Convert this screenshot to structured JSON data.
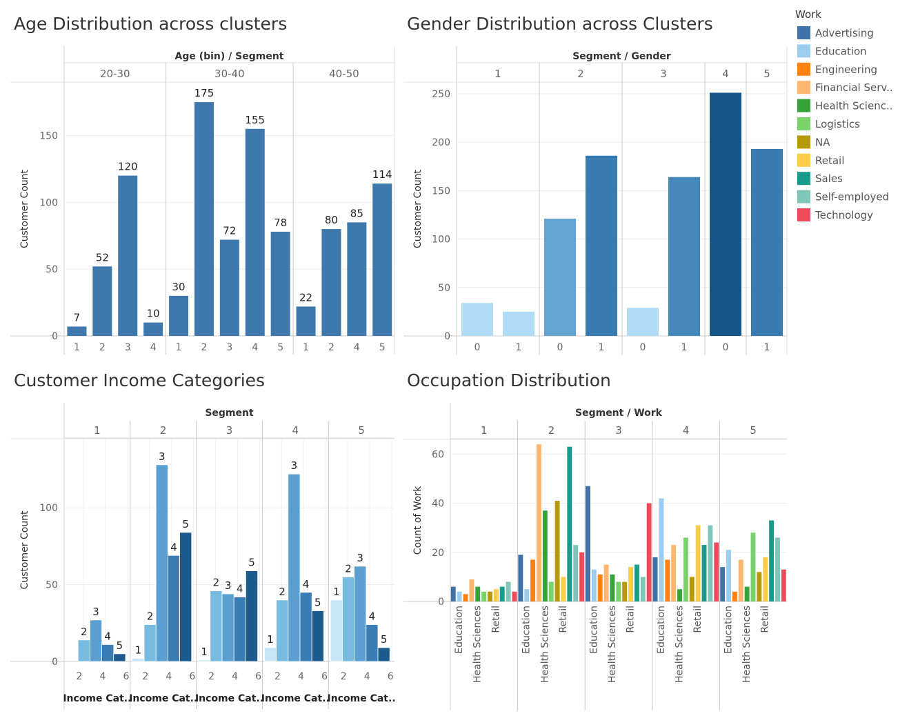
{
  "legend": {
    "title": "Work",
    "items": [
      {
        "label": "Advertising",
        "color": "#3f73a8"
      },
      {
        "label": "Education",
        "color": "#9ccdee"
      },
      {
        "label": "Engineering",
        "color": "#ff8213"
      },
      {
        "label": "Financial Serv..",
        "color": "#ffb770"
      },
      {
        "label": "Health Scienc..",
        "color": "#36a33a"
      },
      {
        "label": "Logistics",
        "color": "#79d26a"
      },
      {
        "label": "NA",
        "color": "#b69a0b"
      },
      {
        "label": "Retail",
        "color": "#f9cd49"
      },
      {
        "label": "Sales",
        "color": "#189b8a"
      },
      {
        "label": "Self-employed",
        "color": "#7fc6b8"
      },
      {
        "label": "Technology",
        "color": "#ef4c5b"
      }
    ]
  },
  "chart_data": [
    {
      "type": "bar",
      "title": "Age Distribution across clusters",
      "header": "Age (bin)  /  Segment",
      "ylabel": "Customer Count",
      "ylim": [
        0,
        190
      ],
      "yticks": [
        0,
        50,
        100,
        150
      ],
      "color": "#3f78ac",
      "groups": [
        {
          "label": "20-30",
          "categories": [
            "1",
            "2",
            "3",
            "4"
          ],
          "values": [
            7,
            52,
            120,
            10
          ]
        },
        {
          "label": "30-40",
          "categories": [
            "1",
            "2",
            "3",
            "4",
            "5"
          ],
          "values": [
            30,
            175,
            72,
            155,
            78
          ]
        },
        {
          "label": "40-50",
          "categories": [
            "1",
            "2",
            "4",
            "5"
          ],
          "values": [
            22,
            80,
            85,
            114
          ]
        }
      ]
    },
    {
      "type": "bar",
      "title": "Gender Distribution across Clusters",
      "header": "Segment  /  Gender",
      "ylabel": "Customer Count",
      "ylim": [
        0,
        262
      ],
      "yticks": [
        0,
        50,
        100,
        150,
        200,
        250
      ],
      "groups": [
        {
          "label": "1",
          "categories": [
            "0",
            "1"
          ],
          "values": [
            34,
            25
          ],
          "colors": [
            "#afdcf4",
            "#afdcf4"
          ]
        },
        {
          "label": "2",
          "categories": [
            "0",
            "1"
          ],
          "values": [
            121,
            186
          ],
          "colors": [
            "#62a5d1",
            "#387bb1"
          ]
        },
        {
          "label": "3",
          "categories": [
            "0",
            "1"
          ],
          "values": [
            29,
            164
          ],
          "colors": [
            "#afdcf4",
            "#4589bb"
          ]
        },
        {
          "label": "4",
          "categories": [
            "0"
          ],
          "values": [
            251
          ],
          "colors": [
            "#155588"
          ]
        },
        {
          "label": "5",
          "categories": [
            "1"
          ],
          "values": [
            193
          ],
          "colors": [
            "#387bb1"
          ]
        }
      ]
    },
    {
      "type": "bar",
      "title": "Customer Income Categories",
      "header": "Segment",
      "ylabel": "Customer Count",
      "ylim": [
        0,
        145
      ],
      "yticks": [
        0,
        50,
        100
      ],
      "xticks": [
        "2",
        "4",
        "6"
      ],
      "xtitle": "Income Cat..",
      "shades": {
        "1": "#c6e5f7",
        "2": "#78bbe0",
        "3": "#5a9fcf",
        "4": "#3a7db5",
        "5": "#1c5b8e"
      },
      "groups": [
        {
          "label": "1",
          "values": [
            {
              "cat": 2,
              "v": 14
            },
            {
              "cat": 3,
              "v": 27
            },
            {
              "cat": 4,
              "v": 11
            },
            {
              "cat": 5,
              "v": 5
            }
          ]
        },
        {
          "label": "2",
          "values": [
            {
              "cat": 1,
              "v": 2
            },
            {
              "cat": 2,
              "v": 24
            },
            {
              "cat": 3,
              "v": 128
            },
            {
              "cat": 4,
              "v": 69
            },
            {
              "cat": 5,
              "v": 84
            }
          ]
        },
        {
          "label": "3",
          "values": [
            {
              "cat": 1,
              "v": 1
            },
            {
              "cat": 2,
              "v": 46
            },
            {
              "cat": 3,
              "v": 44
            },
            {
              "cat": 4,
              "v": 42
            },
            {
              "cat": 5,
              "v": 59
            }
          ]
        },
        {
          "label": "4",
          "values": [
            {
              "cat": 1,
              "v": 9
            },
            {
              "cat": 2,
              "v": 40
            },
            {
              "cat": 3,
              "v": 122
            },
            {
              "cat": 4,
              "v": 45
            },
            {
              "cat": 5,
              "v": 33
            }
          ]
        },
        {
          "label": "5",
          "values": [
            {
              "cat": 1,
              "v": 40
            },
            {
              "cat": 2,
              "v": 55
            },
            {
              "cat": 3,
              "v": 62
            },
            {
              "cat": 4,
              "v": 24
            },
            {
              "cat": 5,
              "v": 9
            }
          ]
        }
      ]
    },
    {
      "type": "bar",
      "title": "Occupation Distribution",
      "header": "Segment  /  Work",
      "ylabel": "Count of Work",
      "ylim": [
        0,
        66
      ],
      "yticks": [
        0,
        20,
        40,
        60
      ],
      "xticks": [
        "Education",
        "Health Sciences",
        "Retail"
      ],
      "works": [
        "Advertising",
        "Education",
        "Engineering",
        "Financial Serv..",
        "Health Scienc..",
        "Logistics",
        "NA",
        "Retail",
        "Sales",
        "Self-employed",
        "Technology"
      ],
      "groups": [
        {
          "label": "1",
          "values": [
            6,
            4,
            3,
            9,
            6,
            4,
            4,
            5,
            6,
            8,
            4
          ]
        },
        {
          "label": "2",
          "values": [
            19,
            5,
            17,
            64,
            37,
            8,
            41,
            10,
            63,
            23,
            20
          ]
        },
        {
          "label": "3",
          "values": [
            47,
            13,
            11,
            15,
            11,
            8,
            8,
            14,
            15,
            10,
            40
          ]
        },
        {
          "label": "4",
          "values": [
            18,
            42,
            17,
            23,
            5,
            26,
            10,
            31,
            23,
            31,
            24
          ]
        },
        {
          "label": "5",
          "values": [
            14,
            21,
            4,
            17,
            6,
            28,
            12,
            18,
            33,
            26,
            13
          ]
        }
      ]
    }
  ]
}
